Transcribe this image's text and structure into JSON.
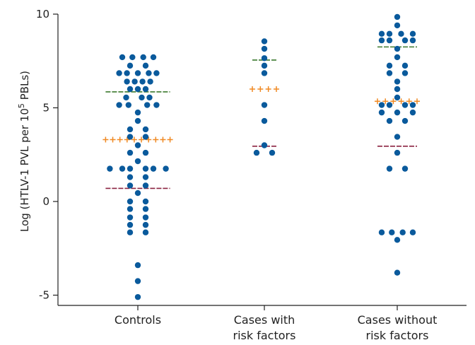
{
  "chart_data": {
    "type": "scatter",
    "ylabel": {
      "prefix": "Log (HTLV-1 PVL per 10",
      "superscript": "5",
      "suffix": " PBLs)"
    },
    "ylim": [
      -5.5,
      10
    ],
    "yticks": [
      {
        "value": -5,
        "label": "-5"
      },
      {
        "value": 0,
        "label": "0"
      },
      {
        "value": 5,
        "label": "5"
      },
      {
        "value": 10,
        "label": "10"
      }
    ],
    "categories": [
      {
        "label_lines": [
          "Controls"
        ]
      },
      {
        "label_lines": [
          "Cases with",
          "risk factors"
        ]
      },
      {
        "label_lines": [
          "Cases without",
          "risk factors"
        ]
      }
    ],
    "colors": {
      "points": "#0a5a9c",
      "mean_marker": "#f08a24",
      "upper_line": "#3c7a2e",
      "lower_line": "#8b2340",
      "axis": "#222222"
    },
    "groups": [
      {
        "mean": 3.3,
        "upper": 5.85,
        "lower": 0.7,
        "points": [
          {
            "y": 7.7,
            "o": -2
          },
          {
            "y": 7.7,
            "o": -0.7
          },
          {
            "y": 7.7,
            "o": 0.7
          },
          {
            "y": 7.7,
            "o": 2
          },
          {
            "y": 7.25,
            "o": -1
          },
          {
            "y": 7.25,
            "o": 1
          },
          {
            "y": 6.85,
            "o": -2.4
          },
          {
            "y": 6.85,
            "o": -1.4
          },
          {
            "y": 6.85,
            "o": 0
          },
          {
            "y": 6.85,
            "o": 1.4
          },
          {
            "y": 6.85,
            "o": 2.4
          },
          {
            "y": 6.4,
            "o": -1.4
          },
          {
            "y": 6.4,
            "o": -0.4
          },
          {
            "y": 6.4,
            "o": 0.6
          },
          {
            "y": 6.4,
            "o": 1.6
          },
          {
            "y": 6.0,
            "o": -1
          },
          {
            "y": 6.0,
            "o": 0
          },
          {
            "y": 6.0,
            "o": 1
          },
          {
            "y": 5.55,
            "o": -1.5
          },
          {
            "y": 5.55,
            "o": 0.5
          },
          {
            "y": 5.55,
            "o": 1.5
          },
          {
            "y": 5.15,
            "o": -2.4
          },
          {
            "y": 5.15,
            "o": -1.2
          },
          {
            "y": 5.15,
            "o": 1.2
          },
          {
            "y": 5.15,
            "o": 2.4
          },
          {
            "y": 4.75,
            "o": 0
          },
          {
            "y": 4.3,
            "o": 0
          },
          {
            "y": 3.85,
            "o": -1
          },
          {
            "y": 3.85,
            "o": 1
          },
          {
            "y": 3.45,
            "o": -1
          },
          {
            "y": 3.45,
            "o": 1
          },
          {
            "y": 3.0,
            "o": 0
          },
          {
            "y": 2.6,
            "o": -1
          },
          {
            "y": 2.6,
            "o": 1
          },
          {
            "y": 2.15,
            "o": 0
          },
          {
            "y": 1.75,
            "o": -3.6
          },
          {
            "y": 1.75,
            "o": -2
          },
          {
            "y": 1.75,
            "o": -1
          },
          {
            "y": 1.75,
            "o": 1
          },
          {
            "y": 1.75,
            "o": 2
          },
          {
            "y": 1.75,
            "o": 3.6
          },
          {
            "y": 1.3,
            "o": -1
          },
          {
            "y": 1.3,
            "o": 1
          },
          {
            "y": 0.85,
            "o": -1
          },
          {
            "y": 0.85,
            "o": 1
          },
          {
            "y": 0.45,
            "o": 0
          },
          {
            "y": 0.0,
            "o": -1
          },
          {
            "y": 0.0,
            "o": 1
          },
          {
            "y": -0.4,
            "o": -1
          },
          {
            "y": -0.4,
            "o": 1
          },
          {
            "y": -0.85,
            "o": -1
          },
          {
            "y": -0.85,
            "o": 1
          },
          {
            "y": -1.25,
            "o": -1
          },
          {
            "y": -1.25,
            "o": 1
          },
          {
            "y": -1.65,
            "o": -1
          },
          {
            "y": -1.65,
            "o": 1
          },
          {
            "y": -3.4,
            "o": 0
          },
          {
            "y": -4.25,
            "o": 0
          },
          {
            "y": -5.1,
            "o": 0
          }
        ]
      },
      {
        "mean": 6.0,
        "upper": 7.55,
        "lower": 2.95,
        "points": [
          {
            "y": 8.55,
            "o": 0
          },
          {
            "y": 8.15,
            "o": 0
          },
          {
            "y": 7.65,
            "o": 0
          },
          {
            "y": 7.25,
            "o": 0
          },
          {
            "y": 6.85,
            "o": 0
          },
          {
            "y": 5.15,
            "o": 0
          },
          {
            "y": 4.3,
            "o": 0
          },
          {
            "y": 3.0,
            "o": 0
          },
          {
            "y": 2.6,
            "o": -1
          },
          {
            "y": 2.6,
            "o": 1
          }
        ]
      },
      {
        "mean": 5.35,
        "upper": 8.25,
        "lower": 2.95,
        "points": [
          {
            "y": 9.85,
            "o": 0
          },
          {
            "y": 9.4,
            "o": 0
          },
          {
            "y": 8.95,
            "o": -2
          },
          {
            "y": 8.95,
            "o": -1
          },
          {
            "y": 8.95,
            "o": 0.5
          },
          {
            "y": 8.95,
            "o": 2
          },
          {
            "y": 8.6,
            "o": -2
          },
          {
            "y": 8.6,
            "o": -1
          },
          {
            "y": 8.6,
            "o": 1
          },
          {
            "y": 8.6,
            "o": 2
          },
          {
            "y": 8.15,
            "o": 0
          },
          {
            "y": 7.7,
            "o": 0
          },
          {
            "y": 7.25,
            "o": -1
          },
          {
            "y": 7.25,
            "o": 1
          },
          {
            "y": 6.85,
            "o": -1
          },
          {
            "y": 6.85,
            "o": 1
          },
          {
            "y": 6.4,
            "o": 0
          },
          {
            "y": 6.0,
            "o": 0
          },
          {
            "y": 5.55,
            "o": 0
          },
          {
            "y": 5.15,
            "o": -2
          },
          {
            "y": 5.15,
            "o": -1
          },
          {
            "y": 5.15,
            "o": 1
          },
          {
            "y": 5.15,
            "o": 2
          },
          {
            "y": 4.75,
            "o": -2
          },
          {
            "y": 4.75,
            "o": 0
          },
          {
            "y": 4.75,
            "o": 2
          },
          {
            "y": 4.3,
            "o": -1
          },
          {
            "y": 4.3,
            "o": 1
          },
          {
            "y": 3.45,
            "o": 0
          },
          {
            "y": 2.6,
            "o": 0
          },
          {
            "y": 1.75,
            "o": -1
          },
          {
            "y": 1.75,
            "o": 1
          },
          {
            "y": -1.65,
            "o": -2
          },
          {
            "y": -1.65,
            "o": -0.7
          },
          {
            "y": -1.65,
            "o": 0.7
          },
          {
            "y": -1.65,
            "o": 2
          },
          {
            "y": -2.05,
            "o": 0
          },
          {
            "y": -3.8,
            "o": 0
          }
        ]
      }
    ]
  }
}
